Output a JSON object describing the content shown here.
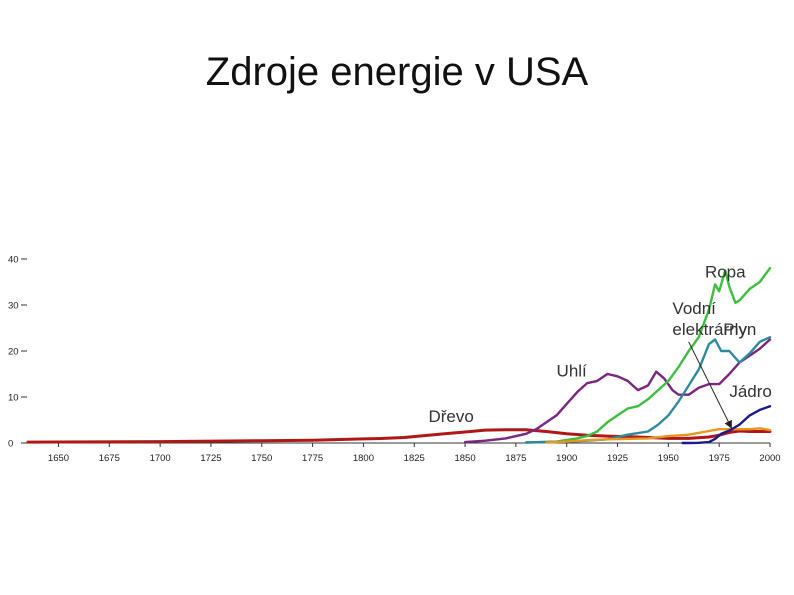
{
  "title": "Zdroje energie v USA",
  "chart_data": {
    "type": "line",
    "title": "Zdroje energie v USA",
    "xlabel": "",
    "ylabel": "",
    "xlim": [
      1635,
      2000
    ],
    "ylim": [
      0,
      40
    ],
    "grid": false,
    "x_ticks": [
      "1650",
      "1675",
      "1700",
      "1725",
      "1750",
      "1775",
      "1800",
      "1825",
      "1850",
      "1875",
      "1900",
      "1925",
      "1950",
      "1975",
      "2000"
    ],
    "y_ticks": [
      "0",
      "10",
      "20",
      "30",
      "40"
    ],
    "series": [
      {
        "name": "Dřevo",
        "color": "#b01818",
        "x": [
          1635,
          1700,
          1750,
          1775,
          1800,
          1810,
          1820,
          1830,
          1840,
          1850,
          1860,
          1870,
          1880,
          1890,
          1900,
          1910,
          1920,
          1930,
          1940,
          1950,
          1960,
          1970,
          1975,
          1980,
          1985,
          1990,
          2000
        ],
        "y": [
          0.2,
          0.3,
          0.5,
          0.6,
          0.9,
          1.0,
          1.2,
          1.6,
          2.0,
          2.4,
          2.8,
          2.9,
          2.9,
          2.5,
          2.0,
          1.7,
          1.5,
          1.4,
          1.2,
          1.0,
          1.0,
          1.3,
          1.7,
          2.3,
          2.6,
          2.5,
          2.5
        ]
      },
      {
        "name": "Uhlí",
        "color": "#7b2481",
        "x": [
          1850,
          1860,
          1870,
          1880,
          1885,
          1890,
          1895,
          1900,
          1905,
          1910,
          1915,
          1920,
          1925,
          1930,
          1935,
          1940,
          1944,
          1948,
          1952,
          1955,
          1960,
          1965,
          1970,
          1975,
          1980,
          1985,
          1990,
          1995,
          2000
        ],
        "y": [
          0.2,
          0.5,
          1.0,
          2.0,
          3.0,
          4.5,
          6.0,
          8.5,
          11.0,
          13.0,
          13.5,
          15.0,
          14.5,
          13.5,
          11.5,
          12.5,
          15.5,
          14.0,
          11.5,
          10.5,
          10.5,
          12.0,
          12.8,
          12.8,
          15.0,
          17.5,
          19.0,
          20.5,
          22.5
        ]
      },
      {
        "name": "Ropa",
        "color": "#3cbf3c",
        "x": [
          1880,
          1895,
          1905,
          1910,
          1915,
          1920,
          1925,
          1930,
          1935,
          1940,
          1945,
          1950,
          1955,
          1960,
          1965,
          1970,
          1973,
          1975,
          1978,
          1980,
          1983,
          1985,
          1990,
          1995,
          2000
        ],
        "y": [
          0.1,
          0.3,
          1.0,
          1.5,
          2.5,
          4.5,
          6.0,
          7.5,
          8.0,
          9.5,
          11.5,
          13.5,
          16.5,
          20.0,
          23.0,
          29.0,
          34.5,
          33.0,
          37.5,
          34.0,
          30.5,
          31.0,
          33.5,
          35.0,
          38.0
        ]
      },
      {
        "name": "Plyn",
        "color": "#2e8a9f",
        "x": [
          1880,
          1900,
          1910,
          1920,
          1930,
          1940,
          1945,
          1950,
          1955,
          1960,
          1965,
          1970,
          1973,
          1976,
          1980,
          1985,
          1990,
          1995,
          2000
        ],
        "y": [
          0.1,
          0.3,
          0.5,
          0.8,
          1.8,
          2.5,
          4.0,
          6.0,
          9.0,
          12.5,
          16.0,
          21.5,
          22.5,
          20.0,
          20.0,
          17.5,
          19.5,
          22.0,
          23.0
        ]
      },
      {
        "name": "Vodní elektrárny",
        "color": "#e8961e",
        "x": [
          1890,
          1900,
          1910,
          1920,
          1930,
          1940,
          1950,
          1960,
          1970,
          1975,
          1980,
          1985,
          1990,
          1995,
          2000
        ],
        "y": [
          0.1,
          0.3,
          0.6,
          0.8,
          0.9,
          1.0,
          1.5,
          1.8,
          2.6,
          3.0,
          3.0,
          3.0,
          3.0,
          3.2,
          2.8
        ]
      },
      {
        "name": "Jádro",
        "color": "#1a1a8e",
        "x": [
          1957,
          1960,
          1965,
          1970,
          1973,
          1976,
          1980,
          1985,
          1990,
          1995,
          2000
        ],
        "y": [
          0.0,
          0.01,
          0.05,
          0.2,
          0.9,
          2.0,
          2.7,
          4.0,
          6.0,
          7.2,
          8.0
        ]
      }
    ],
    "annotations": [
      {
        "text": "Ropa",
        "x": 1968,
        "y": 36.0
      },
      {
        "text": "Vodní",
        "x": 1952,
        "y": 28.0
      },
      {
        "text": "elektrárny",
        "x": 1952,
        "y": 23.5
      },
      {
        "text": "Plyn",
        "x": 1977,
        "y": 23.5
      },
      {
        "text": "Uhlí",
        "x": 1895,
        "y": 14.5
      },
      {
        "text": "Jádro",
        "x": 1980,
        "y": 10.0
      },
      {
        "text": "Dřevo",
        "x": 1832,
        "y": 4.6
      }
    ],
    "arrow": {
      "from": [
        1960,
        22.0
      ],
      "to": [
        1981,
        3.3
      ]
    }
  }
}
